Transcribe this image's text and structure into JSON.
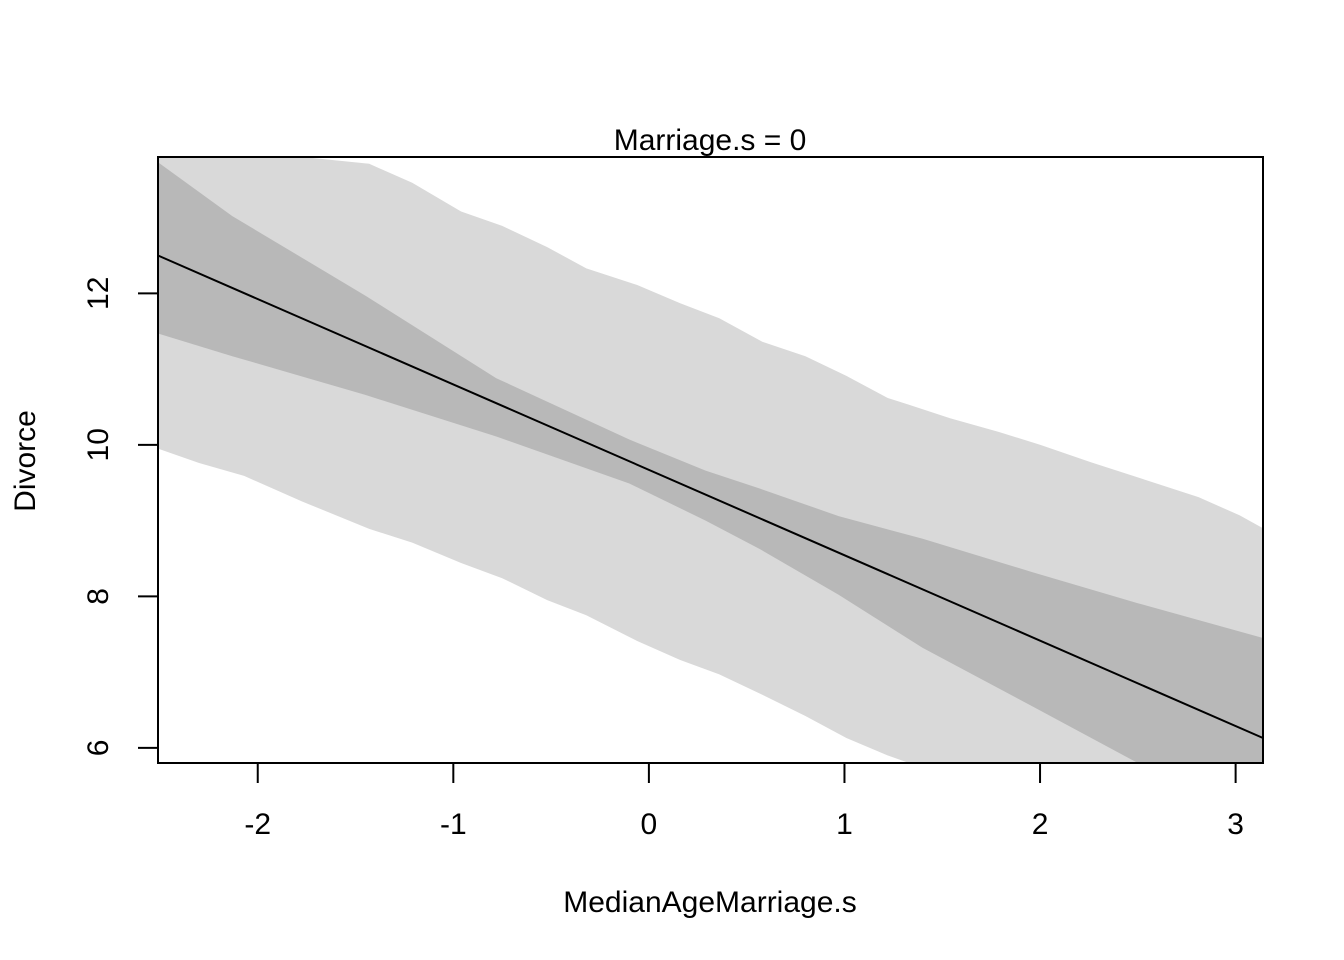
{
  "chart_data": {
    "type": "line",
    "title": "Marriage.s = 0",
    "xlabel": "MedianAgeMarriage.s",
    "ylabel": "Divorce",
    "xlim": [
      -2.51,
      3.14
    ],
    "ylim": [
      5.8,
      13.8
    ],
    "xticks": [
      -2,
      -1,
      0,
      1,
      2,
      3
    ],
    "yticks": [
      6,
      8,
      10,
      12
    ],
    "grid": false,
    "legend": "none",
    "colors": {
      "mean_line": "#000000",
      "prediction_interval": "#d9d9d9",
      "mean_interval": "#b8b8b8",
      "frame": "#000000"
    },
    "series": [
      {
        "role": "mean",
        "x": [
          -2.51,
          3.14
        ],
        "y": [
          12.5,
          6.13
        ]
      },
      {
        "role": "mean-interval",
        "x": [
          -2.51,
          -2.13,
          -1.45,
          -0.78,
          -0.1,
          0.29,
          0.57,
          0.97,
          1.4,
          1.96,
          2.5,
          3.14
        ],
        "lower": [
          11.47,
          11.17,
          10.66,
          10.11,
          9.49,
          9.0,
          8.62,
          8.02,
          7.32,
          6.55,
          5.8,
          5.8
        ],
        "upper": [
          13.73,
          13.02,
          11.97,
          10.88,
          10.07,
          9.66,
          9.42,
          9.06,
          8.76,
          8.32,
          7.91,
          7.45
        ]
      },
      {
        "role": "prediction-interval",
        "x": [
          -2.51,
          -2.3,
          -2.07,
          -1.77,
          -1.43,
          -1.21,
          -0.96,
          -0.75,
          -0.52,
          -0.32,
          -0.06,
          0.16,
          0.36,
          0.58,
          0.8,
          1.01,
          1.22,
          1.33,
          1.54,
          1.79,
          2.0,
          2.26,
          2.56,
          2.81,
          3.02,
          3.14
        ],
        "lower": [
          9.95,
          9.76,
          9.59,
          9.25,
          8.89,
          8.71,
          8.44,
          8.24,
          7.95,
          7.75,
          7.41,
          7.16,
          6.97,
          6.7,
          6.42,
          6.13,
          5.9,
          5.8,
          5.8,
          5.8,
          5.8,
          5.8,
          5.8,
          5.8,
          5.8,
          5.8
        ],
        "upper": [
          13.8,
          13.8,
          13.8,
          13.8,
          13.71,
          13.46,
          13.08,
          12.89,
          12.61,
          12.33,
          12.11,
          11.87,
          11.67,
          11.36,
          11.17,
          10.91,
          10.62,
          10.53,
          10.35,
          10.17,
          10.0,
          9.77,
          9.52,
          9.31,
          9.07,
          8.9
        ]
      }
    ]
  }
}
